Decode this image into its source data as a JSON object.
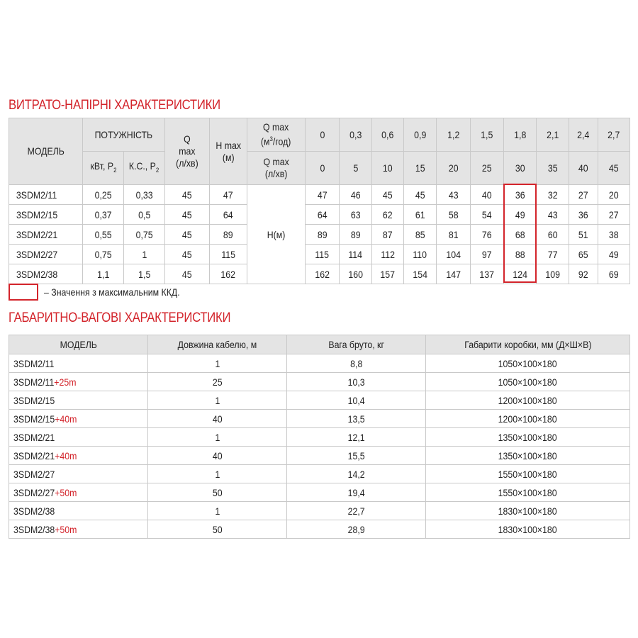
{
  "section1": {
    "title": "ВИТРАТО-НАПІРНІ ХАРАКТЕРИСТИКИ",
    "headers": {
      "model": "МОДЕЛЬ",
      "power": "ПОТУЖНІСТЬ",
      "kw": "кВт, P",
      "hp": "К.С., P",
      "power_sub": "2",
      "qmax_line1": "Q",
      "qmax_line2": "max",
      "qmax_line3": "(л/хв)",
      "hmax_line1": "H max",
      "hmax_line2": "(м)",
      "qmax_m3_line1": "Q max",
      "qmax_m3_line2": "(м",
      "qmax_m3_sup": "3",
      "qmax_m3_line2_end": "/год)",
      "qmax_lmin_line1": "Q max",
      "qmax_lmin_line2": "(л/хв)"
    },
    "flow_m3h": [
      "0",
      "0,3",
      "0,6",
      "0,9",
      "1,2",
      "1,5",
      "1,8",
      "2,1",
      "2,4",
      "2,7"
    ],
    "flow_lmin": [
      "0",
      "5",
      "10",
      "15",
      "20",
      "25",
      "30",
      "35",
      "40",
      "45"
    ],
    "head_label": "H(м)",
    "rows": [
      {
        "model": "3SDM2/11",
        "kw": "0,25",
        "hp": "0,33",
        "qmax": "45",
        "hmax": "47",
        "h": [
          "47",
          "46",
          "45",
          "45",
          "43",
          "40",
          "36",
          "32",
          "27",
          "20"
        ]
      },
      {
        "model": "3SDM2/15",
        "kw": "0,37",
        "hp": "0,5",
        "qmax": "45",
        "hmax": "64",
        "h": [
          "64",
          "63",
          "62",
          "61",
          "58",
          "54",
          "49",
          "43",
          "36",
          "27"
        ]
      },
      {
        "model": "3SDM2/21",
        "kw": "0,55",
        "hp": "0,75",
        "qmax": "45",
        "hmax": "89",
        "h": [
          "89",
          "89",
          "87",
          "85",
          "81",
          "76",
          "68",
          "60",
          "51",
          "38"
        ]
      },
      {
        "model": "3SDM2/27",
        "kw": "0,75",
        "hp": "1",
        "qmax": "45",
        "hmax": "115",
        "h": [
          "115",
          "114",
          "112",
          "110",
          "104",
          "97",
          "88",
          "77",
          "65",
          "49"
        ]
      },
      {
        "model": "3SDM2/38",
        "kw": "1,1",
        "hp": "1,5",
        "qmax": "45",
        "hmax": "162",
        "h": [
          "162",
          "160",
          "157",
          "154",
          "147",
          "137",
          "124",
          "109",
          "92",
          "69"
        ]
      }
    ],
    "highlight_column": "1,8",
    "legend": "– Значення з максимальним ККД."
  },
  "section2": {
    "title": "ГАБАРИТНО-ВАГОВІ ХАРАКТЕРИСТИКИ",
    "headers": [
      "МОДЕЛЬ",
      "Довжина кабелю, м",
      "Вага бруто, кг",
      "Габарити коробки, мм (Д×Ш×В)"
    ],
    "rows": [
      {
        "model": "3SDM2/11",
        "suffix": "",
        "cable": "1",
        "weight": "8,8",
        "box": "1050×100×180"
      },
      {
        "model": "3SDM2/11",
        "suffix": "+25m",
        "cable": "25",
        "weight": "10,3",
        "box": "1050×100×180"
      },
      {
        "model": "3SDM2/15",
        "suffix": "",
        "cable": "1",
        "weight": "10,4",
        "box": "1200×100×180"
      },
      {
        "model": "3SDM2/15",
        "suffix": "+40m",
        "cable": "40",
        "weight": "13,5",
        "box": "1200×100×180"
      },
      {
        "model": "3SDM2/21",
        "suffix": "",
        "cable": "1",
        "weight": "12,1",
        "box": "1350×100×180"
      },
      {
        "model": "3SDM2/21",
        "suffix": "+40m",
        "cable": "40",
        "weight": "15,5",
        "box": "1350×100×180"
      },
      {
        "model": "3SDM2/27",
        "suffix": "",
        "cable": "1",
        "weight": "14,2",
        "box": "1550×100×180"
      },
      {
        "model": "3SDM2/27",
        "suffix": "+50m",
        "cable": "50",
        "weight": "19,4",
        "box": "1550×100×180"
      },
      {
        "model": "3SDM2/38",
        "suffix": "",
        "cable": "1",
        "weight": "22,7",
        "box": "1830×100×180"
      },
      {
        "model": "3SDM2/38",
        "suffix": "+50m",
        "cable": "50",
        "weight": "28,9",
        "box": "1830×100×180"
      }
    ]
  },
  "colors": {
    "accent": "#d3242b",
    "header_bg": "#e4e4e4",
    "border": "#c9c9c9"
  }
}
